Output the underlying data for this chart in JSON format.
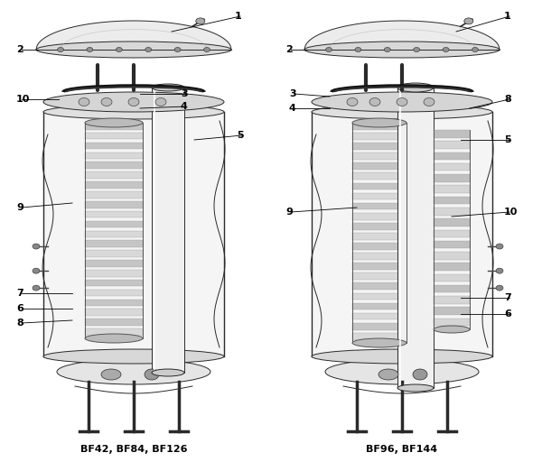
{
  "bg_color": "#ffffff",
  "label_color": "#000000",
  "left_label": "BF42, BF84, BF126",
  "right_label": "BF96, BF144",
  "font_size_labels": 8,
  "font_size_bottom": 8,
  "line_color": "#2a2a2a",
  "gray1": "#c8c8c8",
  "gray2": "#e0e0e0",
  "gray3": "#a0a0a0",
  "gray4": "#d8d8d8",
  "gray5": "#b0b0b0"
}
